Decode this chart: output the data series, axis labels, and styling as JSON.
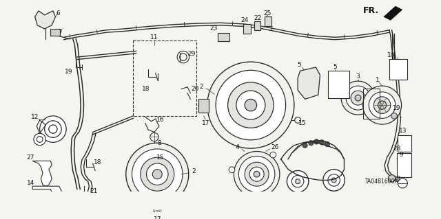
{
  "bg_color": "#f5f5f0",
  "diagram_code": "TA04B1600A",
  "fig_width": 6.4,
  "fig_height": 3.19,
  "line_color": "#2a2a2a",
  "text_color": "#111111",
  "font_size": 6.5
}
